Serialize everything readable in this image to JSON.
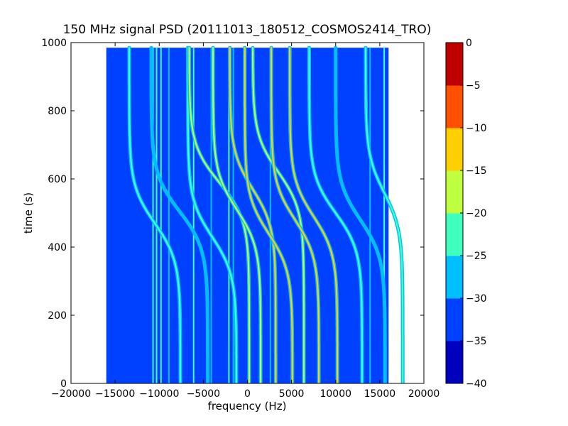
{
  "chart_data": {
    "type": "heatmap",
    "title": "150 MHz signal PSD (20111013_180512_COSMOS2414_TRO)",
    "xlabel": "frequency (Hz)",
    "ylabel": "time (s)",
    "xlim": [
      -20000,
      20000
    ],
    "ylim": [
      0,
      1000
    ],
    "data_extent": {
      "x": [
        -16000,
        16000
      ],
      "y": [
        0,
        985
      ]
    },
    "background_level": -33,
    "xticks": [
      -20000,
      -15000,
      -10000,
      -5000,
      0,
      5000,
      10000,
      15000,
      20000
    ],
    "xtick_labels": [
      "−20000",
      "−15000",
      "−10000",
      "−5000",
      "0",
      "5000",
      "10000",
      "15000",
      "20000"
    ],
    "yticks": [
      0,
      200,
      400,
      600,
      800,
      1000
    ],
    "ytick_labels": [
      "0",
      "200",
      "400",
      "600",
      "800",
      "1000"
    ],
    "colorbar": {
      "levels": [
        -40,
        -35,
        -30,
        -25,
        -20,
        -15,
        -10,
        -5,
        0
      ],
      "tick_labels": [
        "−40",
        "−35",
        "−30",
        "−25",
        "−20",
        "−15",
        "−10",
        "−5",
        "0"
      ],
      "colors": [
        "#0000bf",
        "#0040ff",
        "#00bfff",
        "#40ffbf",
        "#bfff40",
        "#ffcf00",
        "#ff5000",
        "#bf0000"
      ]
    },
    "vertical_lines": [
      {
        "freq": -10700,
        "level": -22
      },
      {
        "freq": -10300,
        "level": -25
      },
      {
        "freq": -9800,
        "level": -25
      },
      {
        "freq": -8900,
        "level": -27
      },
      {
        "freq": -6100,
        "level": -25
      },
      {
        "freq": -4100,
        "level": -27
      },
      {
        "freq": -2100,
        "level": -22
      },
      {
        "freq": -1600,
        "level": -28
      },
      {
        "freq": 2600,
        "level": -30
      },
      {
        "freq": 13900,
        "level": -28
      },
      {
        "freq": 15500,
        "level": -25
      }
    ],
    "traces": [
      {
        "f_center": -10500,
        "t_center": 470,
        "span": 5800,
        "level": -25
      },
      {
        "f_center": -7700,
        "t_center": 505,
        "span": 6400,
        "level": -28
      },
      {
        "f_center": -4000,
        "t_center": 430,
        "span": 5500,
        "level": -25
      },
      {
        "f_center": -3200,
        "t_center": 590,
        "span": 6800,
        "level": -20
      },
      {
        "f_center": -1200,
        "t_center": 510,
        "span": 5400,
        "level": -18
      },
      {
        "f_center": 600,
        "t_center": 570,
        "span": 5200,
        "level": -12
      },
      {
        "f_center": 2400,
        "t_center": 440,
        "span": 5400,
        "level": -12
      },
      {
        "f_center": 3500,
        "t_center": 620,
        "span": 5800,
        "level": -18
      },
      {
        "f_center": 5400,
        "t_center": 480,
        "span": 5400,
        "level": -15
      },
      {
        "f_center": 7500,
        "t_center": 490,
        "span": 5400,
        "level": -15
      },
      {
        "f_center": 10000,
        "t_center": 500,
        "span": 6000,
        "level": -25
      },
      {
        "f_center": 12800,
        "t_center": 480,
        "span": 5600,
        "level": -28
      },
      {
        "f_center": 15500,
        "t_center": 560,
        "span": 4200,
        "level": -25
      }
    ]
  }
}
